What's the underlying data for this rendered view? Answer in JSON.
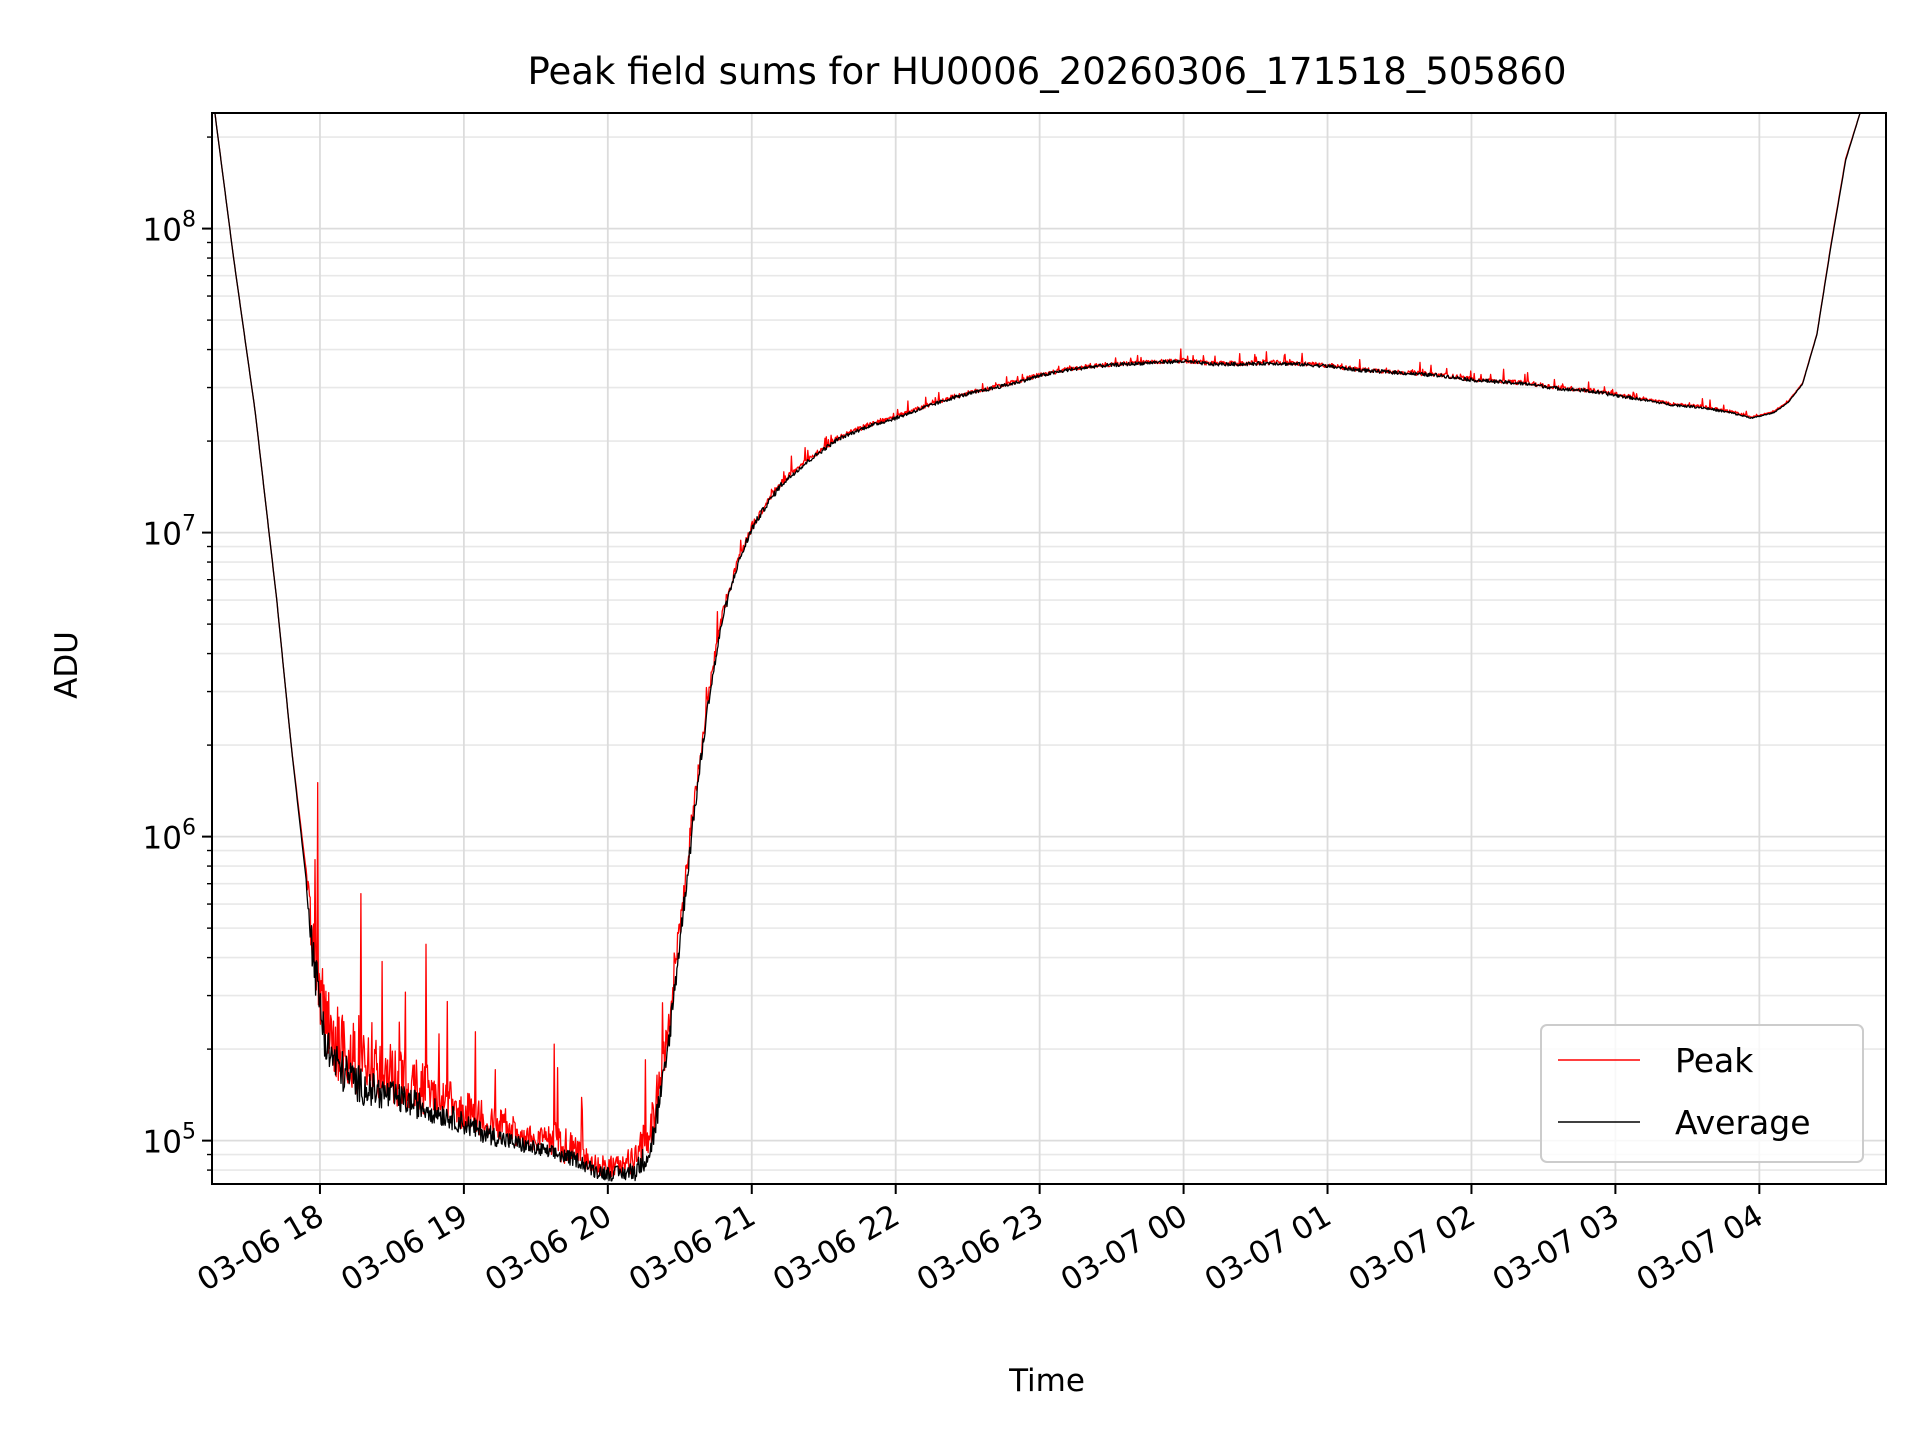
{
  "chart_data": {
    "type": "line",
    "title": "Peak field sums for HU0006_20260306_171518_505860",
    "xlabel": "Time",
    "ylabel": "ADU",
    "yscale": "log",
    "ylim": [
      72000,
      240000000
    ],
    "xlim_hours_since_0306_17": [
      0.25,
      11.88
    ],
    "x_tick_labels": [
      "03-06 18",
      "03-06 19",
      "03-06 20",
      "03-06 21",
      "03-06 22",
      "03-06 23",
      "03-07 00",
      "03-07 01",
      "03-07 02",
      "03-07 03",
      "03-07 04"
    ],
    "x_tick_hours": [
      1,
      2,
      3,
      4,
      5,
      6,
      7,
      8,
      9,
      10,
      11
    ],
    "y_tick_labels": [
      {
        "base": "10",
        "exp": "5",
        "value": 100000
      },
      {
        "base": "10",
        "exp": "6",
        "value": 1000000
      },
      {
        "base": "10",
        "exp": "7",
        "value": 10000000
      },
      {
        "base": "10",
        "exp": "8",
        "value": 100000000
      }
    ],
    "grid": true,
    "legend_position": "bottom-right",
    "series": [
      {
        "name": "Peak",
        "color": "#ff0000",
        "hours": [
          0.27,
          0.4,
          0.55,
          0.7,
          0.8,
          0.9,
          0.95,
          1.0,
          1.05,
          1.15,
          1.3,
          1.5,
          1.7,
          1.9,
          2.1,
          2.3,
          2.5,
          2.65,
          2.8,
          2.9,
          3.0,
          3.1,
          3.2,
          3.3,
          3.4,
          3.5,
          3.6,
          3.7,
          3.8,
          3.9,
          4.0,
          4.1,
          4.2,
          4.3,
          4.4,
          4.5,
          4.6,
          4.8,
          5.0,
          5.2,
          5.4,
          5.6,
          5.8,
          6.0,
          6.2,
          6.4,
          6.6,
          6.8,
          7.0,
          7.2,
          7.4,
          7.6,
          7.8,
          8.0,
          8.2,
          8.4,
          8.6,
          8.8,
          9.0,
          9.2,
          9.4,
          9.6,
          9.8,
          10.0,
          10.2,
          10.4,
          10.6,
          10.8,
          10.95,
          11.1,
          11.2,
          11.3,
          11.4,
          11.5,
          11.6,
          11.7
        ],
        "values": [
          240000000,
          80000000,
          25000000,
          6000000,
          2000000,
          800000,
          450000,
          320000,
          240000,
          200000,
          175000,
          165000,
          150000,
          135000,
          120000,
          110000,
          100000,
          98000,
          92000,
          84000,
          82000,
          83000,
          88000,
          110000,
          200000,
          500000,
          1300000,
          3000000,
          5500000,
          8000000,
          10500000,
          12500000,
          14500000,
          16000000,
          17500000,
          19000000,
          20500000,
          22500000,
          24000000,
          26000000,
          28000000,
          29500000,
          31000000,
          33000000,
          34500000,
          35500000,
          36000000,
          36500000,
          36800000,
          36000000,
          36000000,
          36300000,
          36000000,
          35500000,
          34500000,
          34000000,
          33500000,
          33000000,
          32000000,
          31500000,
          31000000,
          30000000,
          29500000,
          28500000,
          27500000,
          26500000,
          26000000,
          25000000,
          24000000,
          25000000,
          27000000,
          31000000,
          45000000,
          90000000,
          170000000,
          240000000
        ],
        "noise": [
          0,
          0,
          0,
          0,
          0,
          0,
          0.22,
          0.25,
          0.25,
          0.25,
          0.22,
          0.2,
          0.18,
          0.15,
          0.12,
          0.1,
          0.08,
          0.14,
          0.08,
          0.07,
          0.07,
          0.07,
          0.1,
          0.15,
          0.12,
          0.1,
          0.08,
          0.05,
          0.04,
          0.03,
          0.03,
          0.03,
          0.025,
          0.02,
          0.02,
          0.02,
          0.02,
          0.015,
          0.015,
          0.015,
          0.015,
          0.015,
          0.015,
          0.015,
          0.015,
          0.015,
          0.015,
          0.015,
          0.015,
          0.015,
          0.015,
          0.015,
          0.015,
          0.015,
          0.015,
          0.015,
          0.015,
          0.015,
          0.015,
          0.015,
          0.015,
          0.015,
          0.015,
          0.015,
          0.01,
          0.01,
          0.01,
          0.01,
          0.005,
          0.003,
          0.002,
          0.002,
          0,
          0,
          0,
          0
        ]
      },
      {
        "name": "Average",
        "color": "#000000",
        "hours": [
          0.27,
          0.4,
          0.55,
          0.7,
          0.8,
          0.9,
          0.95,
          1.0,
          1.05,
          1.15,
          1.3,
          1.5,
          1.7,
          1.9,
          2.1,
          2.3,
          2.5,
          2.65,
          2.8,
          2.9,
          3.0,
          3.1,
          3.2,
          3.3,
          3.4,
          3.5,
          3.6,
          3.7,
          3.8,
          3.9,
          4.0,
          4.1,
          4.2,
          4.3,
          4.4,
          4.5,
          4.6,
          4.8,
          5.0,
          5.2,
          5.4,
          5.6,
          5.8,
          6.0,
          6.2,
          6.4,
          6.6,
          6.8,
          7.0,
          7.2,
          7.4,
          7.6,
          7.8,
          8.0,
          8.2,
          8.4,
          8.6,
          8.8,
          9.0,
          9.2,
          9.4,
          9.6,
          9.8,
          10.0,
          10.2,
          10.4,
          10.6,
          10.8,
          10.95,
          11.1,
          11.2,
          11.3,
          11.4,
          11.5,
          11.6,
          11.7
        ],
        "values": [
          240000000,
          80000000,
          25000000,
          6000000,
          2000000,
          750000,
          420000,
          280000,
          200000,
          170000,
          150000,
          140000,
          130000,
          120000,
          108000,
          100000,
          94000,
          90000,
          86000,
          80000,
          78000,
          78000,
          80000,
          95000,
          170000,
          450000,
          1200000,
          2800000,
          5300000,
          7800000,
          10300000,
          12300000,
          14300000,
          15800000,
          17300000,
          18800000,
          20300000,
          22300000,
          23800000,
          25800000,
          27800000,
          29300000,
          30800000,
          32800000,
          34300000,
          35300000,
          35800000,
          36300000,
          36600000,
          35800000,
          35800000,
          36100000,
          35800000,
          35300000,
          34300000,
          33800000,
          33300000,
          32800000,
          31800000,
          31300000,
          30800000,
          29800000,
          29300000,
          28300000,
          27300000,
          26300000,
          25800000,
          24800000,
          23800000,
          24800000,
          26800000,
          30800000,
          44800000,
          89000000,
          168000000,
          240000000
        ],
        "noise": [
          0,
          0,
          0,
          0,
          0,
          0,
          0.15,
          0.16,
          0.15,
          0.14,
          0.12,
          0.1,
          0.09,
          0.08,
          0.07,
          0.06,
          0.05,
          0.05,
          0.05,
          0.05,
          0.05,
          0.05,
          0.07,
          0.1,
          0.1,
          0.08,
          0.06,
          0.04,
          0.03,
          0.025,
          0.025,
          0.02,
          0.02,
          0.015,
          0.015,
          0.015,
          0.012,
          0.012,
          0.012,
          0.012,
          0.012,
          0.012,
          0.012,
          0.012,
          0.012,
          0.012,
          0.012,
          0.012,
          0.012,
          0.012,
          0.012,
          0.012,
          0.012,
          0.012,
          0.012,
          0.012,
          0.012,
          0.012,
          0.012,
          0.012,
          0.012,
          0.012,
          0.012,
          0.012,
          0.008,
          0.008,
          0.008,
          0.008,
          0.004,
          0.003,
          0.002,
          0.002,
          0,
          0,
          0,
          0
        ]
      }
    ]
  }
}
